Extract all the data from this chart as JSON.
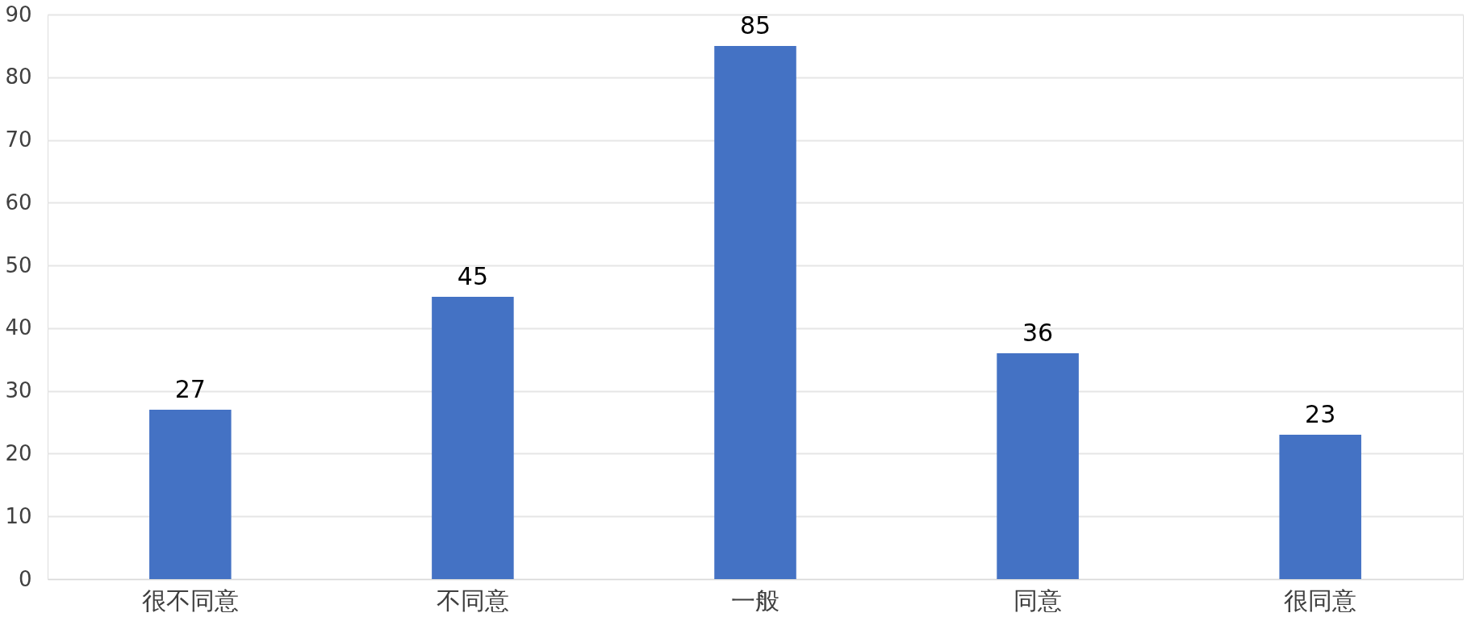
{
  "chart_data": {
    "type": "bar",
    "categories": [
      "很不同意",
      "不同意",
      "一般",
      "同意",
      "很同意"
    ],
    "values": [
      27,
      45,
      85,
      36,
      23
    ],
    "color": "#4472c4",
    "ylim": [
      0,
      90
    ],
    "yticks": [
      0,
      10,
      20,
      30,
      40,
      50,
      60,
      70,
      80,
      90
    ],
    "grid": "y",
    "data_labels": true
  }
}
